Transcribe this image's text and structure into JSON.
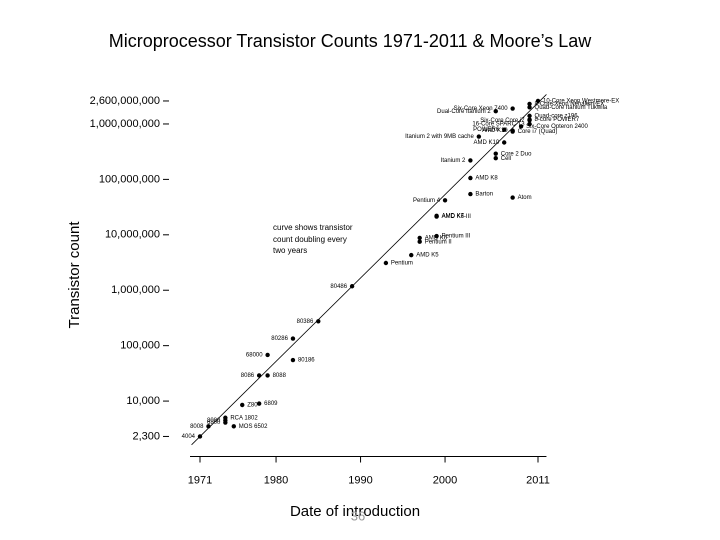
{
  "chart_data": {
    "type": "scatter",
    "title": "Microprocessor Transistor Counts 1971-2011 & Moore’s Law",
    "x_label": "Date of introduction",
    "y_label": "Transistor count",
    "annotation": [
      "curve shows transistor",
      "count doubling every",
      "two years"
    ],
    "page_number": "36",
    "log_y": true,
    "color": "#000000",
    "xlim": [
      1969,
      2012
    ],
    "xticks": [
      1971,
      1980,
      1990,
      2000,
      2011
    ],
    "ylim": [
      1000,
      4000000000
    ],
    "yticks": [
      {
        "value": 2300,
        "label": "2,300"
      },
      {
        "value": 10000,
        "label": "10,000"
      },
      {
        "value": 100000,
        "label": "100,000"
      },
      {
        "value": 1000000,
        "label": "1,000,000"
      },
      {
        "value": 10000000,
        "label": "10,000,000"
      },
      {
        "value": 100000000,
        "label": "100,000,000"
      },
      {
        "value": 1000000000,
        "label": "1,000,000,000"
      },
      {
        "value": 2600000000,
        "label": "2,600,000,000"
      }
    ],
    "trend": {
      "x": [
        1970,
        2012
      ],
      "values": [
        1626,
        3410000000
      ]
    },
    "point_labels": [
      "4004",
      "8008",
      "8080",
      "6800",
      "RCA 1802",
      "MOS 6502",
      "Z80",
      "6809",
      "8086",
      "8088",
      "68000",
      "80186",
      "80286",
      "80386",
      "80486",
      "Pentium",
      "AMD K5",
      "Pentium II",
      "AMD K6",
      "Pentium III",
      "AMD K6-III",
      "AMD K7",
      "Pentium 4",
      "Barton",
      "AMD K8",
      "Atom",
      "Itanium 2",
      "Cell",
      "Core 2 Duo",
      "Itanium 2 with 9MB cache",
      "AMD K10",
      "POWER6",
      "AMD K10",
      "Core i7 (Quad)",
      "Six-Core Opteron 2400",
      "Dual-Core Itanium 2",
      "Six-Core Core i7",
      "Six-Core Xeon 7400",
      "16-Core SPARC T3",
      "10-Core Xeon Westmere-EX",
      "8-core POWER7",
      "Quad-core z196",
      "Quad-Core Itanium Tukwila",
      "8-Core Xeon Nehalem-EX"
    ],
    "x": [
      1971,
      1972,
      1974,
      1974,
      1974,
      1975,
      1976,
      1978,
      1978,
      1979,
      1979,
      1982,
      1982,
      1985,
      1989,
      1993,
      1996,
      1997,
      1997,
      1999,
      1999,
      1999,
      2000,
      2003,
      2003,
      2008,
      2003,
      2006,
      2006,
      2004,
      2007,
      2007,
      2008,
      2008,
      2009,
      2006,
      2010,
      2008,
      2010,
      2011,
      2010,
      2010,
      2010,
      2010
    ],
    "values": [
      2300,
      3500,
      4500,
      4100,
      5000,
      3510,
      8500,
      9000,
      29000,
      29000,
      68000,
      55000,
      134000,
      275000,
      1180000,
      3100000,
      4300000,
      7500000,
      8800000,
      9500000,
      21300000,
      22000000,
      42000000,
      54300000,
      105900000,
      47000000,
      220000000,
      241000000,
      291000000,
      592000000,
      463000000,
      789000000,
      758000000,
      731000000,
      904000000,
      1700000000,
      1170000000,
      1900000000,
      1000000000,
      2600000000,
      1200000000,
      1400000000,
      2000000000,
      2300000000
    ]
  }
}
